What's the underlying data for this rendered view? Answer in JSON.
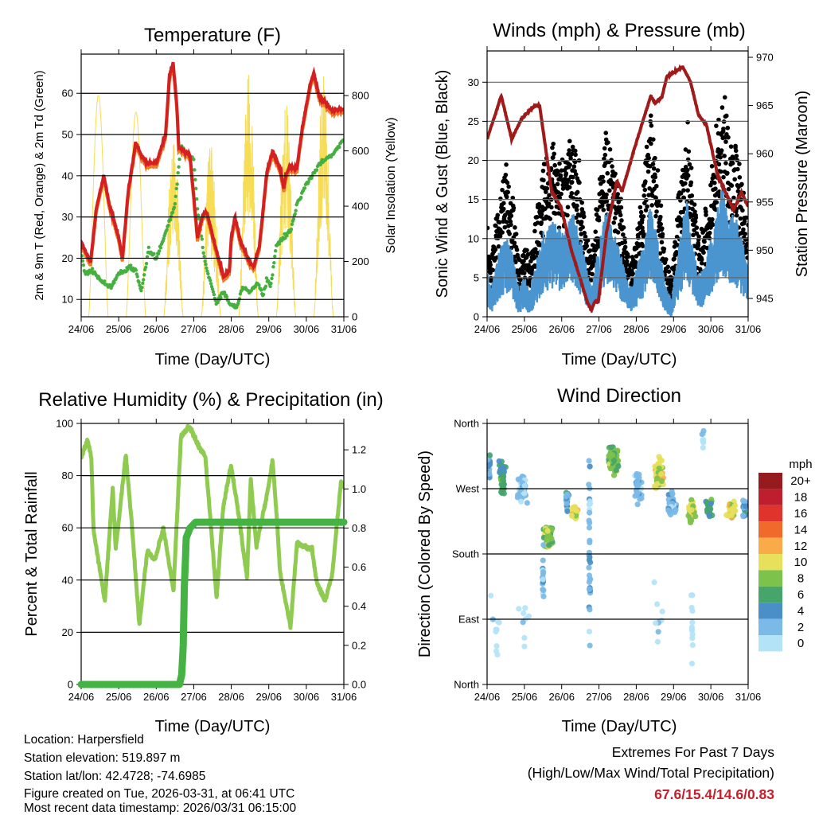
{
  "colors": {
    "temp_2m": "#d42020",
    "temp_9m": "#f07a28",
    "dewpoint": "#45b040",
    "solar": "#f7dc55",
    "wind_mean": "#4a95d0",
    "wind_gust": "#000000",
    "pressure": "#a11a1a",
    "rh": "#8fcb50",
    "precip": "#45b244",
    "extremes": "#c3202c"
  },
  "chart_data": [
    {
      "type": "line",
      "title": "Temperature (F)",
      "xlabel": "Time (Day/UTC)",
      "ylabel": "2m & 9m T (Red, Orange) & 2m Td (Green)",
      "ylabel_right": "Solar Insolation (Yellow)",
      "x_ticks": [
        "24/06",
        "25/06",
        "26/06",
        "27/06",
        "28/06",
        "29/06",
        "30/06",
        "31/06"
      ],
      "ylim": [
        5.8,
        69.5
      ],
      "ylim_right": [
        0,
        950
      ],
      "y_ticks": [
        10,
        20,
        30,
        40,
        50,
        60
      ],
      "y_tick_labels": [
        "10",
        "20",
        "30",
        "40",
        "50",
        "60"
      ],
      "y_ticks_right": [
        0,
        200,
        400,
        600,
        800
      ],
      "y_tick_labels_right": [
        "0",
        "200",
        "400",
        "600",
        "800"
      ],
      "series": [
        {
          "name": "2m T",
          "x_days": [
            0,
            0.25,
            0.4,
            0.6,
            0.75,
            0.85,
            1.0,
            1.1,
            1.25,
            1.45,
            1.6,
            1.75,
            2.0,
            2.25,
            2.35,
            2.45,
            2.55,
            2.6,
            2.9,
            3.0,
            3.1,
            3.25,
            3.35,
            3.6,
            3.8,
            3.95,
            4.0,
            4.1,
            4.25,
            4.5,
            4.6,
            4.75,
            4.95,
            5.1,
            5.3,
            5.4,
            5.45,
            5.55,
            5.75,
            5.9,
            6.1,
            6.2,
            6.35,
            6.5,
            6.65,
            7.0
          ],
          "values": [
            24,
            19,
            32,
            40,
            33,
            30,
            25,
            20,
            36,
            48,
            45,
            43,
            43,
            50,
            64,
            67.6,
            57,
            47,
            45,
            35,
            25,
            31,
            31,
            22,
            15.4,
            17,
            25,
            30,
            24,
            19,
            18,
            23,
            41,
            46,
            42,
            37,
            40,
            42,
            42,
            52,
            62,
            65,
            59,
            58,
            56,
            56
          ]
        },
        {
          "name": "9m T",
          "offset_from_2m": -0.8
        },
        {
          "name": "2m Td",
          "x_days": [
            0,
            0.1,
            0.3,
            0.6,
            0.8,
            1.0,
            1.3,
            1.45,
            1.6,
            1.7,
            1.8,
            2.0,
            2.2,
            2.5,
            2.65,
            2.75,
            3.0,
            3.1,
            3.3,
            3.45,
            3.6,
            3.8,
            3.95,
            4.15,
            4.3,
            4.5,
            4.7,
            4.85,
            4.95,
            5.05,
            5.2,
            5.4,
            5.6,
            5.75,
            6.0,
            6.3,
            6.5,
            6.7,
            7.0
          ],
          "values": [
            22,
            16,
            17,
            14,
            13,
            16,
            18,
            17,
            12,
            17,
            22,
            20,
            25,
            33,
            47,
            46,
            44,
            32,
            19,
            14,
            9,
            12,
            9,
            8,
            13,
            12,
            14,
            11,
            15,
            13,
            23,
            25,
            27,
            33,
            38,
            42,
            44,
            45,
            49
          ]
        },
        {
          "name": "Solar Insolation",
          "daily_peak": [
            800,
            740,
            680,
            660,
            900,
            790,
            900
          ],
          "variability": [
            0,
            0,
            0.6,
            0.7,
            0.6,
            0.6,
            0.6
          ]
        }
      ]
    },
    {
      "type": "scatter",
      "title": "Winds (mph) & Pressure (mb)",
      "xlabel": "Time (Day/UTC)",
      "ylabel": "Sonic Wind & Gust (Blue, Black)",
      "ylabel_right": "Station Pressure (Maroon)",
      "x_ticks": [
        "24/06",
        "25/06",
        "26/06",
        "27/06",
        "28/06",
        "29/06",
        "30/06",
        "31/06"
      ],
      "ylim": [
        0,
        34
      ],
      "ylim_right": [
        943.1,
        970.66
      ],
      "y_ticks": [
        0,
        5,
        10,
        15,
        20,
        25,
        30
      ],
      "y_tick_labels": [
        "0",
        "5",
        "10",
        "15",
        "20",
        "25",
        "30"
      ],
      "y_ticks_right": [
        945,
        950,
        955,
        960,
        965,
        970
      ],
      "y_tick_labels_right": [
        "945",
        "950",
        "955",
        "960",
        "965",
        "970"
      ],
      "series": [
        {
          "name": "Sonic Wind",
          "x_days": [
            0,
            0.1,
            0.3,
            0.5,
            0.7,
            0.85,
            1.0,
            1.15,
            1.3,
            1.5,
            1.8,
            2.0,
            2.3,
            2.6,
            2.8,
            3.0,
            3.2,
            3.4,
            3.6,
            3.8,
            3.95,
            4.2,
            4.4,
            4.6,
            4.8,
            4.95,
            5.15,
            5.35,
            5.5,
            5.7,
            5.9,
            6.1,
            6.3,
            6.5,
            6.7,
            6.85,
            7.0
          ],
          "values": [
            4,
            2,
            5,
            7,
            5,
            2,
            3,
            2,
            4,
            7,
            8,
            7,
            9,
            5,
            2,
            6,
            9,
            7,
            5,
            2,
            3,
            6,
            10,
            6,
            2,
            1,
            6,
            10,
            6,
            3,
            5,
            8,
            11,
            9,
            8,
            6,
            4
          ]
        },
        {
          "name": "Gust",
          "gust_factor": [
            1.3,
            2.5
          ],
          "max": 31
        },
        {
          "name": "Station Pressure",
          "x_days": [
            0,
            0.38,
            0.66,
            0.92,
            1.28,
            1.41,
            1.73,
            1.98,
            2.26,
            2.69,
            2.8,
            2.9,
            2.98,
            3.2,
            3.48,
            3.62,
            3.97,
            4.39,
            4.5,
            4.69,
            4.82,
            5.25,
            5.46,
            5.67,
            5.88,
            6.18,
            6.61,
            6.82,
            7.0
          ],
          "values": [
            961.5,
            966,
            961.5,
            963.6,
            965,
            965,
            956.1,
            954.5,
            950,
            944.6,
            943.8,
            944.8,
            944.6,
            951.8,
            957.2,
            956.1,
            960.8,
            966,
            965.2,
            965.9,
            968,
            969,
            967.4,
            964,
            963,
            957.8,
            954.2,
            956,
            954.5
          ]
        }
      ]
    },
    {
      "type": "line",
      "title": "Relative Humidity (%) & Precipitation (in)",
      "xlabel": "Time (Day/UTC)",
      "ylabel": "Percent & Total Rainfall",
      "x_ticks": [
        "24/06",
        "25/06",
        "26/06",
        "27/06",
        "28/06",
        "29/06",
        "30/06",
        "31/06"
      ],
      "ylim": [
        0,
        100
      ],
      "ylim_right": [
        0,
        1.335
      ],
      "y_ticks": [
        0,
        20,
        40,
        60,
        80,
        100
      ],
      "y_tick_labels": [
        "0",
        "20",
        "40",
        "60",
        "80",
        "100"
      ],
      "y_ticks_right": [
        0,
        0.2,
        0.4,
        0.6,
        0.8,
        1.0,
        1.2
      ],
      "y_tick_labels_right": [
        "0.0",
        "0.2",
        "0.4",
        "0.6",
        "0.8",
        "1.0",
        "1.2"
      ],
      "series": [
        {
          "name": "Relative Humidity",
          "x_days": [
            0,
            0.17,
            0.27,
            0.33,
            0.63,
            0.84,
            0.92,
            1.19,
            1.34,
            1.55,
            1.76,
            1.97,
            2.19,
            2.46,
            2.66,
            2.89,
            3.1,
            3.31,
            3.61,
            3.78,
            3.99,
            4.14,
            4.42,
            4.52,
            4.67,
            4.95,
            5.1,
            5.22,
            5.3,
            5.58,
            5.75,
            6.15,
            6.28,
            6.5,
            6.69,
            6.92,
            7.0
          ],
          "values": [
            87,
            93.6,
            87,
            59,
            32,
            75,
            52,
            88,
            63,
            23,
            51,
            48,
            60,
            36,
            95,
            99,
            92,
            87,
            33,
            67.6,
            84,
            70.6,
            41,
            79,
            53,
            72.5,
            86,
            63,
            43,
            22,
            54,
            52,
            39,
            32,
            42,
            77,
            76
          ]
        },
        {
          "name": "Total Precipitation",
          "x_days": [
            0,
            2.62,
            2.68,
            2.72,
            2.75,
            2.8,
            2.9,
            3.05,
            7.0
          ],
          "values": [
            0,
            0,
            0.05,
            0.2,
            0.5,
            0.75,
            0.8,
            0.83,
            0.83
          ]
        }
      ]
    },
    {
      "type": "scatter",
      "title": "Wind Direction",
      "xlabel": "Time (Day/UTC)",
      "ylabel": "Direction (Colored By Speed)",
      "x_ticks": [
        "24/06",
        "25/06",
        "26/06",
        "27/06",
        "28/06",
        "29/06",
        "30/06",
        "31/06"
      ],
      "ylim": [
        0,
        360
      ],
      "y_ticks": [
        0,
        90,
        180,
        270,
        360
      ],
      "y_tick_labels": [
        "North",
        "East",
        "South",
        "West",
        "North"
      ],
      "legend": {
        "title": "mph",
        "labels": [
          "20+",
          "18",
          "16",
          "14",
          "12",
          "10",
          "8",
          "6",
          "4",
          "2",
          "0"
        ],
        "colors": [
          "#951b1e",
          "#be1e2d",
          "#e0332b",
          "#f06a2b",
          "#f8ab48",
          "#e6e05a",
          "#7dc24b",
          "#45a56b",
          "#4a8fc8",
          "#7bbae6",
          "#b3e3f7"
        ]
      },
      "clusters": [
        {
          "day": 0.05,
          "day_spread": 0.05,
          "dir": 300,
          "dir_spread": 25,
          "speed": 4,
          "n": 25
        },
        {
          "day": 0.4,
          "day_spread": 0.12,
          "dir": 285,
          "dir_spread": 35,
          "speed": 6.5,
          "n": 45
        },
        {
          "day": 0.95,
          "day_spread": 0.18,
          "dir": 268,
          "dir_spread": 30,
          "speed": 2.5,
          "n": 45
        },
        {
          "day": 1.65,
          "day_spread": 0.18,
          "dir": 205,
          "dir_spread": 22,
          "speed": 9,
          "n": 55
        },
        {
          "day": 1.5,
          "day_spread": 0.03,
          "dir": 150,
          "dir_spread": 50,
          "speed": 3,
          "n": 18
        },
        {
          "day": 2.15,
          "day_spread": 0.05,
          "dir": 255,
          "dir_spread": 30,
          "speed": 4.5,
          "n": 15
        },
        {
          "day": 2.35,
          "day_spread": 0.1,
          "dir": 238,
          "dir_spread": 15,
          "speed": 11,
          "n": 35
        },
        {
          "day": 2.75,
          "day_spread": 0.03,
          "dir": 180,
          "dir_spread": 180,
          "speed": 3.5,
          "n": 35
        },
        {
          "day": 3.4,
          "day_spread": 0.22,
          "dir": 310,
          "dir_spread": 25,
          "speed": 8.5,
          "n": 70
        },
        {
          "day": 4.05,
          "day_spread": 0.12,
          "dir": 270,
          "dir_spread": 30,
          "speed": 3.5,
          "n": 35
        },
        {
          "day": 4.6,
          "day_spread": 0.15,
          "dir": 290,
          "dir_spread": 30,
          "speed": 10.5,
          "n": 45
        },
        {
          "day": 4.95,
          "day_spread": 0.15,
          "dir": 250,
          "dir_spread": 25,
          "speed": 3.5,
          "n": 40
        },
        {
          "day": 5.5,
          "day_spread": 0.12,
          "dir": 240,
          "dir_spread": 25,
          "speed": 10.5,
          "n": 40
        },
        {
          "day": 5.95,
          "day_spread": 0.1,
          "dir": 242,
          "dir_spread": 20,
          "speed": 6.5,
          "n": 28
        },
        {
          "day": 6.55,
          "day_spread": 0.17,
          "dir": 240,
          "dir_spread": 18,
          "speed": 11,
          "n": 45
        },
        {
          "day": 6.9,
          "day_spread": 0.08,
          "dir": 245,
          "dir_spread": 15,
          "speed": 4,
          "n": 22
        },
        {
          "day": 0.2,
          "day_spread": 0.2,
          "dir": 70,
          "dir_spread": 70,
          "speed": 1,
          "n": 10
        },
        {
          "day": 1.0,
          "day_spread": 0.2,
          "dir": 80,
          "dir_spread": 60,
          "speed": 1,
          "n": 8
        },
        {
          "day": 4.6,
          "day_spread": 0.2,
          "dir": 90,
          "dir_spread": 80,
          "speed": 1,
          "n": 8
        },
        {
          "day": 5.5,
          "day_spread": 0.03,
          "dir": 90,
          "dir_spread": 90,
          "speed": 1,
          "n": 12
        },
        {
          "day": 5.8,
          "day_spread": 0.05,
          "dir": 340,
          "dir_spread": 20,
          "speed": 2,
          "n": 8
        }
      ]
    }
  ],
  "footer": {
    "location": "Location: Harpersfield",
    "elevation": "Station elevation: 519.897 m",
    "latlon": "Station lat/lon: 42.4728; -74.6985",
    "created": "Figure created on Tue, 2026-03-31, at 06:41 UTC",
    "recent": "Most recent data timestamp: 2026/03/31 06:15:00"
  },
  "extremes": {
    "title": "Extremes For Past 7 Days",
    "subtitle": "(High/Low/Max Wind/Total Precipitation)",
    "values": "67.6/15.4/14.6/0.83"
  }
}
